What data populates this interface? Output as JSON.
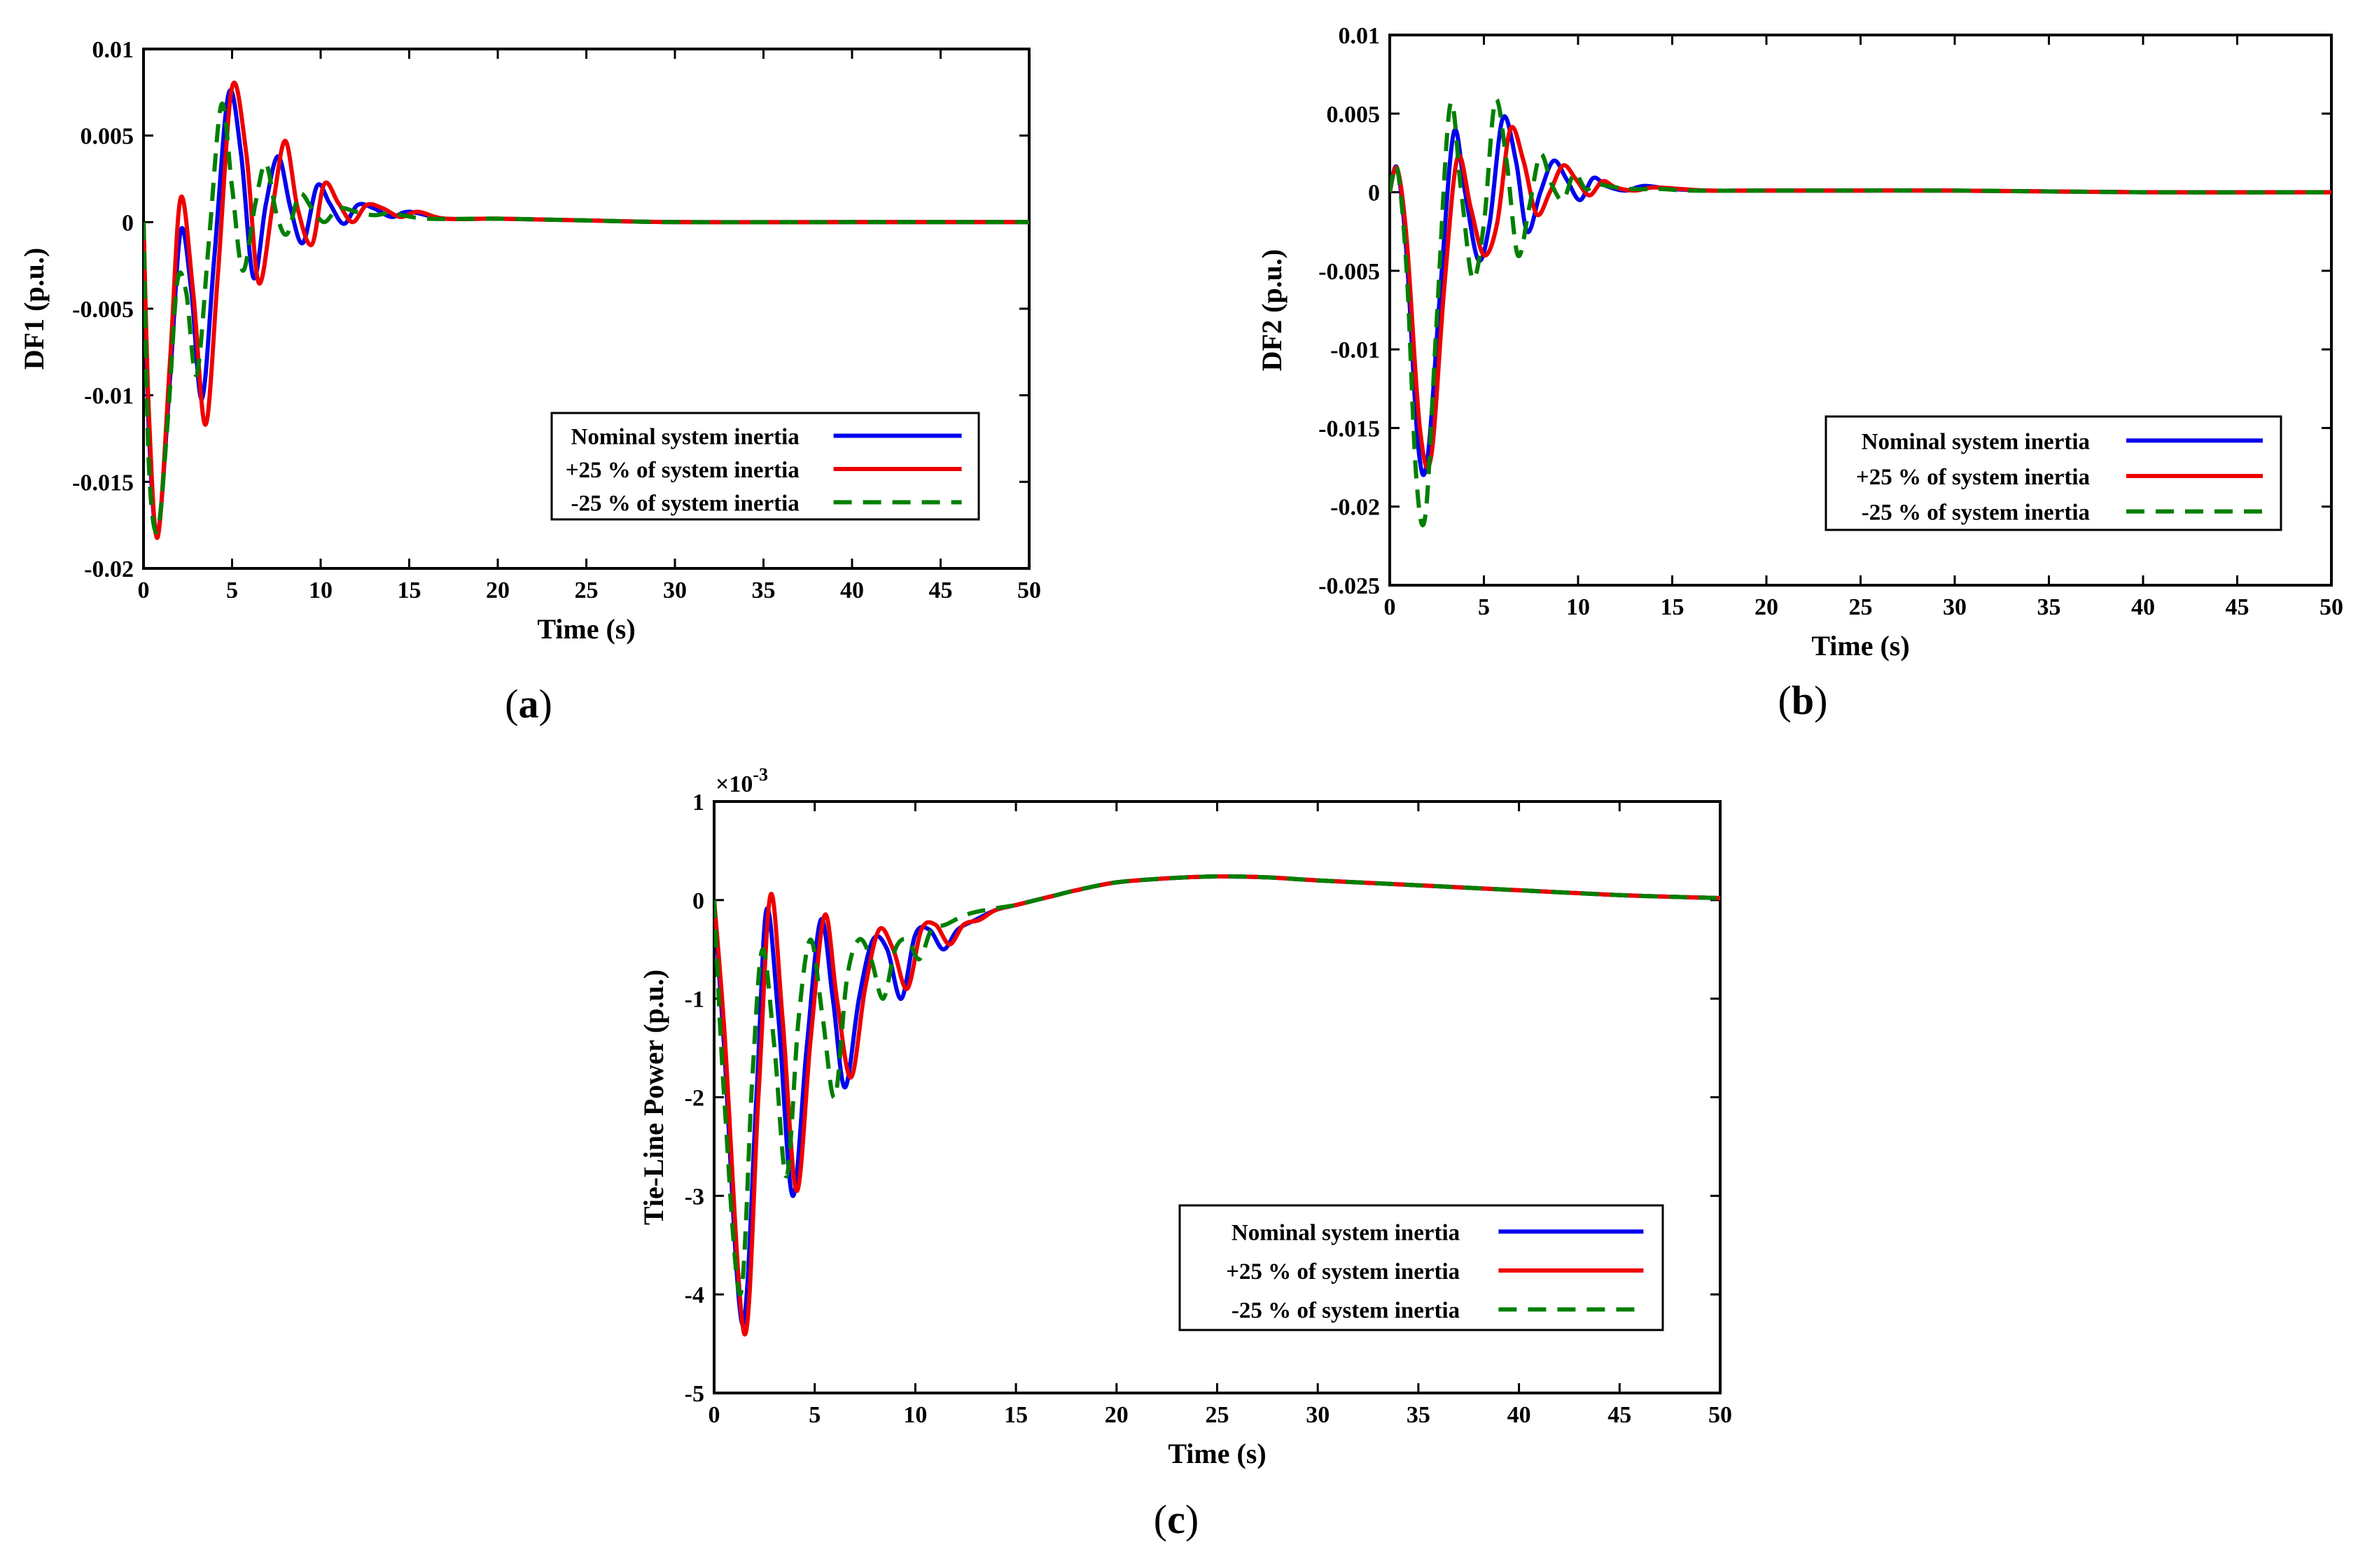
{
  "chart_data": [
    {
      "type": "line",
      "panel_label": "a",
      "title": "",
      "xlabel": "Time (s)",
      "ylabel": "DF1 (p.u.)",
      "xlim": [
        0,
        50
      ],
      "ylim": [
        -0.02,
        0.01
      ],
      "xticks": [
        0,
        5,
        10,
        15,
        20,
        25,
        30,
        35,
        40,
        45,
        50
      ],
      "xtick_labels": [
        "0",
        "5",
        "10",
        "15",
        "20",
        "25",
        "30",
        "35",
        "40",
        "45",
        "50"
      ],
      "yticks": [
        -0.02,
        -0.015,
        -0.01,
        -0.005,
        0,
        0.005,
        0.01
      ],
      "ytick_labels": [
        "-0.02",
        "-0.015",
        "-0.01",
        "-0.005",
        "0",
        "0.005",
        "0.01"
      ],
      "legend_position": "lower-right",
      "series": [
        {
          "name": "Nominal system inertia",
          "color": "#0000ee",
          "dash": "solid",
          "x": [
            0,
            0.3,
            0.8,
            1.5,
            2.1,
            2.7,
            3.3,
            4.0,
            4.8,
            5.5,
            6.2,
            6.9,
            7.6,
            8.3,
            9.0,
            9.8,
            10.5,
            11.3,
            12.1,
            13.0,
            14.0,
            15.0,
            17.0,
            20.0,
            25.0,
            30.0,
            40.0,
            50.0
          ],
          "y": [
            0,
            -0.012,
            -0.018,
            -0.009,
            -0.0005,
            -0.004,
            -0.0102,
            -0.002,
            0.0074,
            0.004,
            -0.0032,
            0.001,
            0.0038,
            0.0008,
            -0.0012,
            0.0021,
            0.0011,
            -0.0001,
            0.001,
            0.0008,
            0.0003,
            0.0006,
            0.0002,
            0.0002,
            0.0001,
            0.0,
            0.0,
            0.0
          ]
        },
        {
          "name": "+25 % of system inertia",
          "color": "#ee0000",
          "dash": "solid",
          "x": [
            0,
            0.3,
            0.8,
            1.5,
            2.1,
            2.8,
            3.5,
            4.2,
            5.0,
            5.8,
            6.5,
            7.3,
            8.0,
            8.7,
            9.5,
            10.2,
            11.0,
            11.8,
            12.6,
            13.5,
            14.5,
            15.5,
            17.0,
            20.0,
            25.0,
            30.0,
            40.0,
            50.0
          ],
          "y": [
            0,
            -0.011,
            -0.0182,
            -0.008,
            0.0014,
            -0.004,
            -0.0117,
            -0.003,
            0.0078,
            0.004,
            -0.0035,
            0.001,
            0.0047,
            0.0008,
            -0.0013,
            0.0022,
            0.0011,
            0.0,
            0.001,
            0.0008,
            0.0003,
            0.0006,
            0.0002,
            0.0002,
            0.0001,
            0.0,
            0.0,
            0.0
          ]
        },
        {
          "name": "-25 % of system inertia",
          "color": "#007f00",
          "dash": "dashed",
          "x": [
            0,
            0.3,
            0.8,
            1.4,
            1.9,
            2.4,
            3.0,
            3.7,
            4.4,
            5.0,
            5.6,
            6.3,
            6.9,
            7.5,
            8.1,
            8.8,
            9.5,
            10.2,
            11.0,
            12.0,
            13.0,
            14.0,
            16.0,
            20.0,
            25.0,
            30.0,
            40.0,
            50.0
          ],
          "y": [
            0,
            -0.014,
            -0.0178,
            -0.011,
            -0.0035,
            -0.004,
            -0.0088,
            -0.001,
            0.0068,
            0.002,
            -0.0028,
            0.001,
            0.0034,
            0.0005,
            -0.0007,
            0.0016,
            0.0008,
            0.0,
            0.0008,
            0.0006,
            0.0004,
            0.0005,
            0.0002,
            0.0002,
            0.0001,
            0.0,
            0.0,
            0.0
          ]
        }
      ]
    },
    {
      "type": "line",
      "panel_label": "b",
      "title": "",
      "xlabel": "Time (s)",
      "ylabel": "DF2 (p.u.)",
      "xlim": [
        0,
        50
      ],
      "ylim": [
        -0.025,
        0.01
      ],
      "xticks": [
        0,
        5,
        10,
        15,
        20,
        25,
        30,
        35,
        40,
        45,
        50
      ],
      "xtick_labels": [
        "0",
        "5",
        "10",
        "15",
        "20",
        "25",
        "30",
        "35",
        "40",
        "45",
        "50"
      ],
      "yticks": [
        -0.025,
        -0.02,
        -0.015,
        -0.01,
        -0.005,
        0,
        0.005,
        0.01
      ],
      "ytick_labels": [
        "-0.025",
        "-0.02",
        "-0.015",
        "-0.01",
        "-0.005",
        "0",
        "0.005",
        "0.01"
      ],
      "legend_position": "lower-right",
      "series": [
        {
          "name": "Nominal system inertia",
          "color": "#0000ee",
          "dash": "solid",
          "x": [
            0,
            0.4,
            0.9,
            1.5,
            2.0,
            2.7,
            3.4,
            4.0,
            4.7,
            5.3,
            6.0,
            6.7,
            7.3,
            8.0,
            8.7,
            9.4,
            10.1,
            10.8,
            11.5,
            12.5,
            13.5,
            15.0,
            17.0,
            20.0,
            30.0,
            40.0,
            50.0
          ],
          "y": [
            0,
            0.0015,
            -0.004,
            -0.016,
            -0.017,
            -0.006,
            0.0038,
            0.0,
            -0.0043,
            -0.002,
            0.0047,
            0.002,
            -0.0025,
            0.0,
            0.002,
            0.0008,
            -0.0005,
            0.0009,
            0.0004,
            0.0001,
            0.0004,
            0.0002,
            0.0001,
            0.0001,
            0.0001,
            0.0,
            0.0
          ]
        },
        {
          "name": "+25 % of system inertia",
          "color": "#ee0000",
          "dash": "solid",
          "x": [
            0,
            0.4,
            0.9,
            1.6,
            2.2,
            2.9,
            3.6,
            4.3,
            5.0,
            5.7,
            6.4,
            7.1,
            7.8,
            8.5,
            9.2,
            9.9,
            10.6,
            11.3,
            12.0,
            13.0,
            14.0,
            15.5,
            17.0,
            20.0,
            30.0,
            40.0,
            50.0
          ],
          "y": [
            0,
            0.0015,
            -0.003,
            -0.015,
            -0.0168,
            -0.006,
            0.0022,
            -0.001,
            -0.004,
            -0.002,
            0.004,
            0.002,
            -0.0014,
            0.0,
            0.0017,
            0.0008,
            -0.0002,
            0.0007,
            0.0003,
            0.0001,
            0.0003,
            0.0002,
            0.0001,
            0.0001,
            0.0001,
            0.0,
            0.0
          ]
        },
        {
          "name": "-25 % of system inertia",
          "color": "#007f00",
          "dash": "dashed",
          "x": [
            0,
            0.4,
            0.9,
            1.4,
            1.9,
            2.5,
            3.2,
            3.8,
            4.4,
            5.0,
            5.6,
            6.2,
            6.8,
            7.4,
            8.0,
            8.6,
            9.2,
            9.8,
            10.4,
            11.0,
            12.0,
            13.0,
            14.5,
            16.0,
            20.0,
            30.0,
            40.0,
            50.0
          ],
          "y": [
            0,
            0.0015,
            -0.005,
            -0.018,
            -0.0205,
            -0.008,
            0.0055,
            0.0,
            -0.0055,
            -0.002,
            0.0058,
            0.002,
            -0.004,
            -0.001,
            0.0024,
            0.0005,
            -0.0005,
            0.0012,
            0.0002,
            0.0005,
            0.0003,
            0.0002,
            0.0002,
            0.0001,
            0.0001,
            0.0001,
            0.0,
            0.0
          ]
        }
      ]
    },
    {
      "type": "line",
      "panel_label": "c",
      "title": "",
      "xlabel": "Time (s)",
      "ylabel": "Tie-Line Power (p.u.)",
      "scale_note": "×10",
      "scale_exponent": "-3",
      "xlim": [
        0,
        50
      ],
      "ylim": [
        -5,
        1
      ],
      "xticks": [
        0,
        5,
        10,
        15,
        20,
        25,
        30,
        35,
        40,
        45,
        50
      ],
      "xtick_labels": [
        "0",
        "5",
        "10",
        "15",
        "20",
        "25",
        "30",
        "35",
        "40",
        "45",
        "50"
      ],
      "yticks": [
        -5,
        -4,
        -3,
        -2,
        -1,
        0,
        1
      ],
      "ytick_labels": [
        "-5",
        "-4",
        "-3",
        "-2",
        "-1",
        "0",
        "1"
      ],
      "legend_position": "lower-right",
      "series": [
        {
          "name": "Nominal system inertia",
          "color": "#0000ee",
          "dash": "solid",
          "x": [
            0,
            0.5,
            1.4,
            2.1,
            2.6,
            3.2,
            3.9,
            4.6,
            5.3,
            5.9,
            6.5,
            7.2,
            7.9,
            8.6,
            9.3,
            10.0,
            10.7,
            11.4,
            12.1,
            13.0,
            14.0,
            15.0,
            16.0,
            17.0,
            18.0,
            20.0,
            22.5,
            25.0,
            27.5,
            30.0,
            35.0,
            40.0,
            45.0,
            50.0
          ],
          "y": [
            0,
            -1.5,
            -4.3,
            -2.0,
            -0.1,
            -1.2,
            -3.0,
            -1.5,
            -0.2,
            -1.0,
            -1.9,
            -1.0,
            -0.4,
            -0.5,
            -1.0,
            -0.35,
            -0.3,
            -0.5,
            -0.3,
            -0.2,
            -0.1,
            -0.05,
            0.0,
            0.05,
            0.1,
            0.18,
            0.22,
            0.24,
            0.23,
            0.2,
            0.15,
            0.1,
            0.05,
            0.02
          ]
        },
        {
          "name": "+25 % of system inertia",
          "color": "#ee0000",
          "dash": "solid",
          "x": [
            0,
            0.5,
            1.5,
            2.2,
            2.8,
            3.4,
            4.1,
            4.8,
            5.5,
            6.1,
            6.8,
            7.5,
            8.2,
            8.9,
            9.6,
            10.3,
            11.0,
            11.7,
            12.4,
            13.2,
            14.0,
            15.0,
            16.0,
            17.0,
            18.0,
            20.0,
            22.5,
            25.0,
            27.5,
            30.0,
            35.0,
            40.0,
            45.0,
            50.0
          ],
          "y": [
            0,
            -1.3,
            -4.4,
            -2.0,
            0.05,
            -1.2,
            -2.95,
            -1.4,
            -0.15,
            -1.0,
            -1.8,
            -0.9,
            -0.3,
            -0.5,
            -0.9,
            -0.3,
            -0.25,
            -0.45,
            -0.25,
            -0.2,
            -0.1,
            -0.05,
            0.0,
            0.05,
            0.1,
            0.18,
            0.22,
            0.24,
            0.23,
            0.2,
            0.15,
            0.1,
            0.05,
            0.02
          ]
        },
        {
          "name": "-25 % of system inertia",
          "color": "#007f00",
          "dash": "dashed",
          "x": [
            0,
            0.5,
            1.3,
            1.9,
            2.4,
            3.0,
            3.6,
            4.2,
            4.8,
            5.4,
            6.0,
            6.6,
            7.2,
            7.8,
            8.4,
            9.0,
            9.6,
            10.2,
            10.8,
            11.5,
            12.5,
            13.5,
            15.0,
            16.0,
            17.0,
            18.0,
            20.0,
            22.5,
            25.0,
            27.5,
            30.0,
            35.0,
            40.0,
            45.0,
            50.0
          ],
          "y": [
            0,
            -2.0,
            -4.0,
            -1.8,
            -0.5,
            -1.5,
            -2.8,
            -1.2,
            -0.4,
            -1.2,
            -2.0,
            -0.8,
            -0.4,
            -0.6,
            -1.0,
            -0.5,
            -0.4,
            -0.6,
            -0.3,
            -0.25,
            -0.15,
            -0.1,
            -0.05,
            0.0,
            0.05,
            0.1,
            0.18,
            0.22,
            0.24,
            0.23,
            0.2,
            0.15,
            0.1,
            0.05,
            0.02
          ]
        }
      ]
    }
  ]
}
